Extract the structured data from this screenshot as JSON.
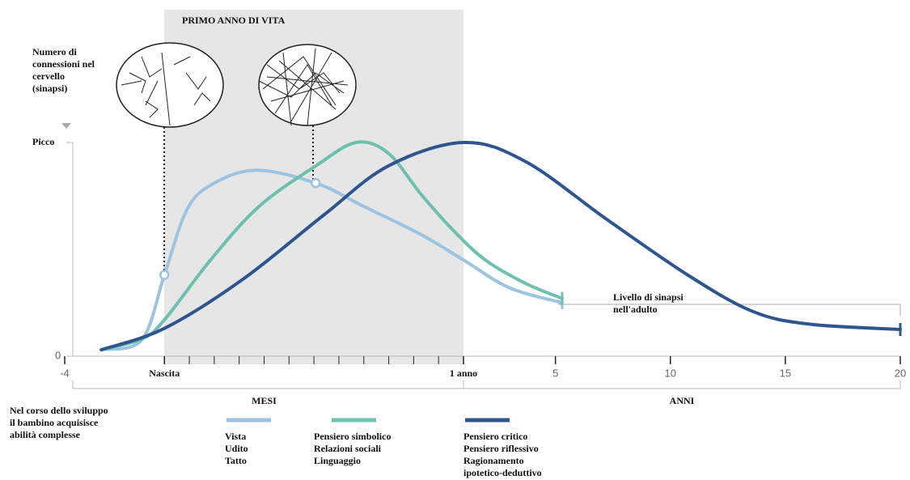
{
  "chart_data": {
    "type": "line",
    "title": "PRIMO ANNO DI VITA",
    "y_label": [
      "Numero di",
      "connessioni nel",
      "cervello",
      "(sinapsi)"
    ],
    "xlim": [
      -4,
      240
    ],
    "x_break": 12,
    "xticks": [
      {
        "value": -4,
        "label": "-4"
      },
      {
        "value": 0,
        "label": "Nascita"
      },
      {
        "value": 12,
        "label": "1 anno"
      },
      {
        "value": 60,
        "label": "5"
      },
      {
        "value": 120,
        "label": "10"
      },
      {
        "value": 180,
        "label": "15"
      },
      {
        "value": 240,
        "label": "20"
      }
    ],
    "minor_xticks": [
      1,
      2,
      3,
      4,
      5,
      6,
      7,
      8,
      9,
      10,
      11
    ],
    "ylim": [
      0,
      1
    ],
    "yticks": [
      0,
      {
        "value": 1,
        "label": "Picco"
      }
    ],
    "x_groups": [
      {
        "label": "MESI",
        "range": [
          -4,
          12
        ]
      },
      {
        "label": "ANNI",
        "range": [
          12,
          240
        ]
      }
    ],
    "annotations": {
      "adult": [
        "Livello di sinapsi",
        "nell'adulto"
      ],
      "note": [
        "Nel corso dello sviluppo",
        "il bambino acquisisce",
        "abilità complesse"
      ]
    },
    "series": [
      {
        "name": [
          "Vista",
          "Udito",
          "Tatto"
        ],
        "color": "#9cc3e0",
        "x": [
          -2.53,
          -0.91,
          0,
          0.88,
          1.85,
          3.63,
          6.07,
          8.01,
          10.28,
          12,
          36,
          63.5
        ],
        "values": [
          0.03,
          0.076,
          0.38,
          0.68,
          0.8,
          0.87,
          0.81,
          0.7,
          0.57,
          0.45,
          0.32,
          0.25
        ]
      },
      {
        "name": [
          "Pensiero simbolico",
          "Relazioni sociali",
          "Linguaggio"
        ],
        "color": "#6cc0ad",
        "x": [
          -2.53,
          -0.91,
          0,
          1.85,
          3.79,
          6.07,
          7.69,
          8.98,
          10.28,
          11.58,
          23.4,
          44.5,
          63.5
        ],
        "values": [
          0.03,
          0.08,
          0.17,
          0.45,
          0.7,
          0.89,
          1.0,
          0.95,
          0.76,
          0.59,
          0.45,
          0.34,
          0.27
        ]
      },
      {
        "name": [
          "Pensiero critico",
          "Pensiero riflessivo",
          "Ragionamento",
          "ipotetico-deduttivo"
        ],
        "color": "#2f5590",
        "x": [
          -2.53,
          0,
          3.15,
          6.39,
          8.98,
          12,
          44.5,
          86.8,
          129,
          162.8,
          192.3,
          240
        ],
        "values": [
          0.03,
          0.13,
          0.36,
          0.66,
          0.89,
          1.0,
          0.91,
          0.64,
          0.38,
          0.21,
          0.15,
          0.125
        ]
      }
    ]
  }
}
